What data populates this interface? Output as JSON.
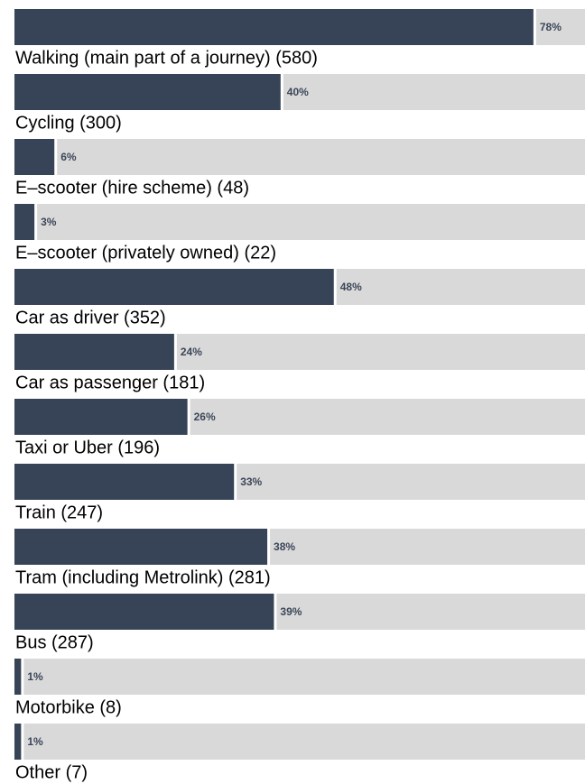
{
  "chart_data": {
    "type": "bar",
    "orientation": "horizontal",
    "color": "#374357",
    "track_color": "#d9d9d9",
    "categories": [
      "Walking (main part of a journey) (580)",
      "Cycling (300)",
      "E–scooter (hire scheme) (48)",
      "E–scooter (privately owned) (22)",
      "Car as driver (352)",
      "Car as passenger (181)",
      "Taxi or Uber (196)",
      "Train (247)",
      "Tram (including Metrolink) (281)",
      "Bus (287)",
      "Motorbike (8)",
      "Other (7)"
    ],
    "values": [
      78,
      40,
      6,
      3,
      48,
      24,
      26,
      33,
      38,
      39,
      1,
      1
    ],
    "value_labels": [
      "78%",
      "40%",
      "6%",
      "3%",
      "48%",
      "24%",
      "26%",
      "33%",
      "38%",
      "39%",
      "1%",
      "1%"
    ]
  }
}
